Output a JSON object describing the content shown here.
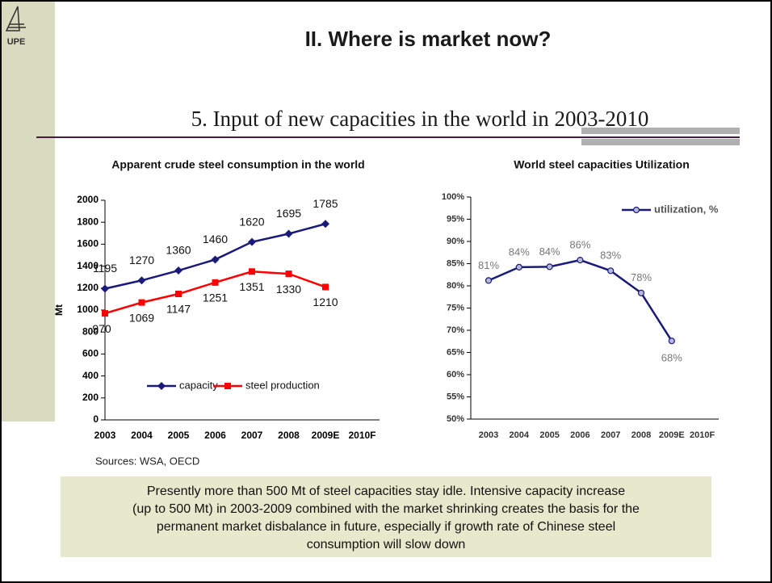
{
  "title": "II. Where is market now?",
  "subtitle": "5. Input of new capacities in the world in 2003-2010",
  "logo": "UPE",
  "sources": "Sources: WSA, OECD",
  "note": {
    "lines": [
      "Presently more than 500 Mt of steel capacities stay idle. Intensive capacity increase",
      "(up to 500 Mt) in 2003-2009 combined with the market shrinking creates the basis for the",
      "permanent market disbalance in future, especially if growth rate of Chinese steel",
      "consumption will slow down"
    ]
  },
  "chart_data": [
    {
      "type": "line",
      "title": "Apparent crude steel consumption in the world",
      "ylabel": "Mt",
      "categories": [
        "2003",
        "2004",
        "2005",
        "2006",
        "2007",
        "2008",
        "2009E",
        "2010F"
      ],
      "series": [
        {
          "name": "capacity",
          "color": "#1a1a7a",
          "marker": "diamond",
          "values": [
            1195,
            1270,
            1360,
            1460,
            1620,
            1695,
            1785,
            null
          ]
        },
        {
          "name": "steel production",
          "color": "#ff0000",
          "marker": "square",
          "values": [
            970,
            1069,
            1147,
            1251,
            1351,
            1330,
            1210,
            null
          ]
        }
      ],
      "ylim": [
        0,
        2000
      ],
      "yticks": [
        0,
        200,
        400,
        600,
        800,
        1000,
        1200,
        1400,
        1600,
        1800,
        2000
      ],
      "legend": "bottom"
    },
    {
      "type": "line",
      "title": "World steel capacities Utilization",
      "categories": [
        "2003",
        "2004",
        "2005",
        "2006",
        "2007",
        "2008",
        "2009E",
        "2010F"
      ],
      "series": [
        {
          "name": "utilization, %",
          "color": "#1a1a7a",
          "marker": "circle",
          "values": [
            81.2,
            84.2,
            84.3,
            85.8,
            83.4,
            78.4,
            67.6,
            null
          ],
          "value_labels": [
            "81%",
            "84%",
            "84%",
            "86%",
            "83%",
            "78%",
            "68%",
            null
          ]
        }
      ],
      "ylim": [
        50,
        100
      ],
      "yticks": [
        {
          "value": 50,
          "label": "50%"
        },
        {
          "value": 55,
          "label": "55%"
        },
        {
          "value": 60,
          "label": "60%"
        },
        {
          "value": 65,
          "label": "65%"
        },
        {
          "value": 70,
          "label": "70%"
        },
        {
          "value": 75,
          "label": "75%"
        },
        {
          "value": 80,
          "label": "80%"
        },
        {
          "value": 85,
          "label": "85%"
        },
        {
          "value": 90,
          "label": "90%"
        },
        {
          "value": 95,
          "label": "95%"
        },
        {
          "value": 100,
          "label": "100%"
        }
      ],
      "legend": "top-right"
    }
  ]
}
